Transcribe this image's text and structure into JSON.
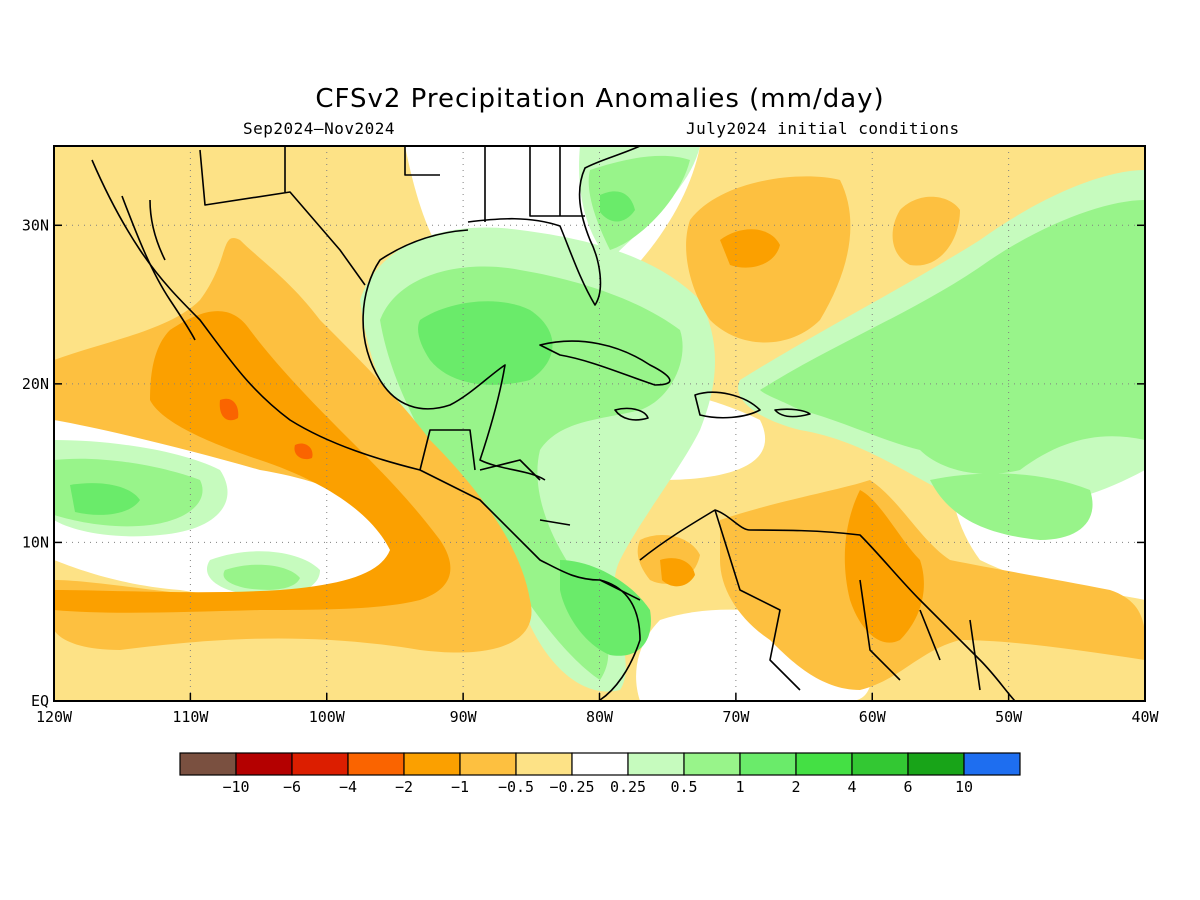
{
  "title": "CFSv2 Precipitation Anomalies (mm/day)",
  "subtitle_left": "Sep2024–Nov2024",
  "subtitle_right": "July2024 initial conditions",
  "map": {
    "lon_range": [
      -120,
      -40
    ],
    "lat_range": [
      0,
      35
    ],
    "grid": "dotted",
    "x_ticks": [
      "120W",
      "110W",
      "100W",
      "90W",
      "80W",
      "70W",
      "60W",
      "50W",
      "40W"
    ],
    "y_ticks": [
      "EQ",
      "10N",
      "20N",
      "30N"
    ]
  },
  "colorbar": {
    "colors": [
      "#7a5040",
      "#b40000",
      "#dc1e00",
      "#fa6400",
      "#fba000",
      "#fdc040",
      "#fde286",
      "#ffffff",
      "#c6fbbe",
      "#98f48a",
      "#6aeb6a",
      "#44e044",
      "#33c833",
      "#18a418",
      "#1e6ef0"
    ],
    "labels": [
      "−10",
      "−6",
      "−4",
      "−2",
      "−1",
      "−0.5",
      "−0.25",
      "0.25",
      "0.5",
      "1",
      "2",
      "4",
      "6",
      "10"
    ]
  },
  "colors": {
    "dry_1": "#fde286",
    "dry_2": "#fdc040",
    "dry_3": "#fba000",
    "dry_4": "#fa6400",
    "wet_1": "#c6fbbe",
    "wet_2": "#98f48a",
    "wet_3": "#6aeb6a",
    "wet_4": "#44e044"
  }
}
